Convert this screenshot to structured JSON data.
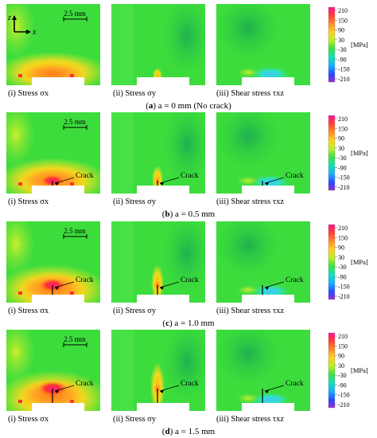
{
  "figure": {
    "scale_bar_label": "2.5 mm",
    "axis_z": "z",
    "axis_x": "x",
    "crack_label": "Crack",
    "colorbar": {
      "ticks": [
        "210",
        "150",
        "90",
        "30",
        "-30",
        "-90",
        "-150",
        "-210"
      ],
      "unit": "[MPa]"
    },
    "rows": [
      {
        "id": "a",
        "crack_mm": 0,
        "caption": {
          "open": "(",
          "letter": "a",
          "rest": ") a = 0 mm (No crack)"
        },
        "panels": [
          {
            "type": "sx",
            "caption": "(i) Stress σx"
          },
          {
            "type": "sy",
            "caption": "(ii) Stress σy"
          },
          {
            "type": "txz",
            "caption": "(iii) Shear stress τxz"
          }
        ]
      },
      {
        "id": "b",
        "crack_mm": 0.5,
        "caption": {
          "open": "(",
          "letter": "b",
          "rest": ") a = 0.5 mm"
        },
        "panels": [
          {
            "type": "sx",
            "caption": "(i) Stress σx"
          },
          {
            "type": "sy",
            "caption": "(ii) Stress σy"
          },
          {
            "type": "txz",
            "caption": "(iii) Shear stress τxz"
          }
        ]
      },
      {
        "id": "c",
        "crack_mm": 1.0,
        "caption": {
          "open": "(",
          "letter": "c",
          "rest": ") a = 1.0 mm"
        },
        "panels": [
          {
            "type": "sx",
            "caption": "(i) Stress σx"
          },
          {
            "type": "sy",
            "caption": "(ii) Stress σy"
          },
          {
            "type": "txz",
            "caption": "(iii) Shear stress τxz"
          }
        ]
      },
      {
        "id": "d",
        "crack_mm": 1.5,
        "caption": {
          "open": "(",
          "letter": "d",
          "rest": ") a = 1.5 mm"
        },
        "panels": [
          {
            "type": "sx",
            "caption": "(i) Stress σx"
          },
          {
            "type": "sy",
            "caption": "(ii) Stress σy"
          },
          {
            "type": "txz",
            "caption": "(iii) Shear stress τxz"
          }
        ]
      }
    ]
  }
}
